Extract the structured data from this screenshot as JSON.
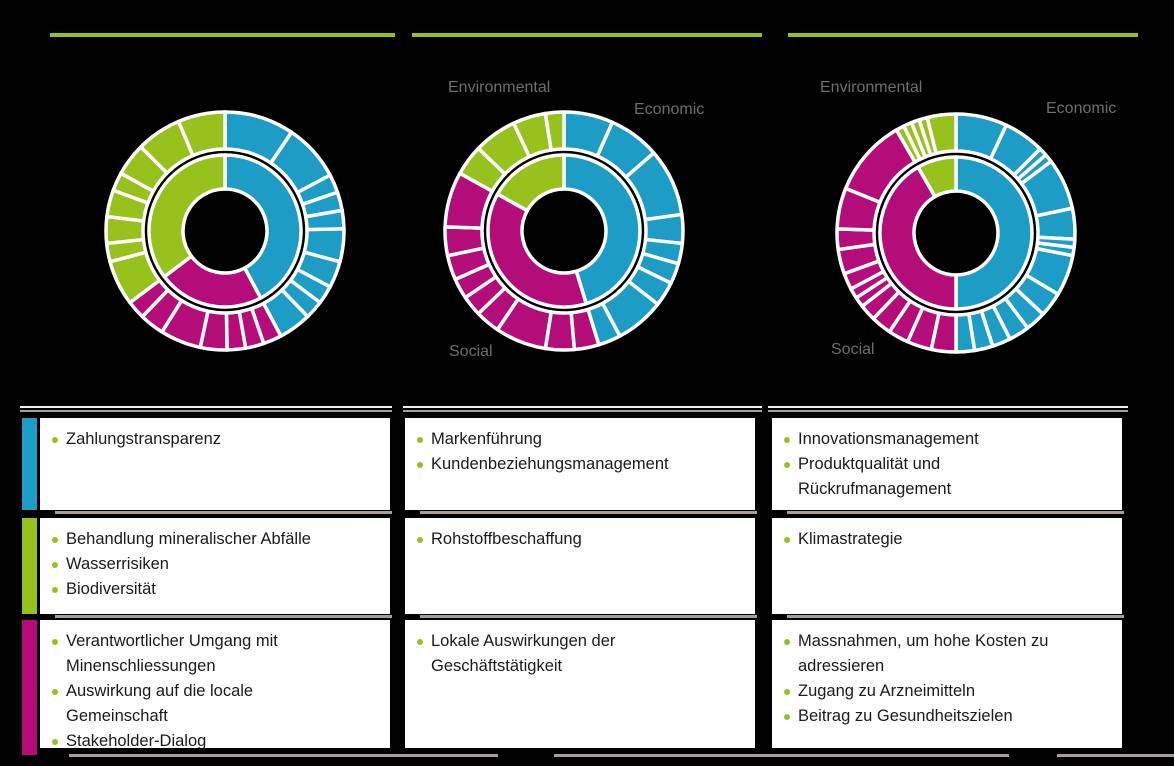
{
  "page": {
    "background": "#000000"
  },
  "colors": {
    "economic": "#1D9DC6",
    "social": "#B40C78",
    "environmental": "#97C11C",
    "accent_line": "#97C11C",
    "pillar_label_gray": "#6E6E6E",
    "card_background": "#FFFFFF",
    "card_text": "#1A1A1A",
    "bullet_green": "#96C11E",
    "separator_white": "#F2EFEB",
    "separator_tan": "#A89F96"
  },
  "chart_data": [
    {
      "type": "sunburst",
      "rings": [
        "inner: pillar shares",
        "outer: criteria weights per pillar"
      ],
      "unit": "degrees",
      "labels": null,
      "pillars": [
        {
          "name": "Economic",
          "color": "#1D9DC6",
          "inner_span_deg": 152,
          "outer_segments_deg": [
            34,
            28,
            9,
            9,
            9,
            16,
            13,
            9,
            9,
            16
          ]
        },
        {
          "name": "Social",
          "color": "#B40C78",
          "inner_span_deg": 81,
          "outer_segments_deg": [
            9,
            9,
            9,
            13,
            20,
            12,
            9
          ]
        },
        {
          "name": "Environmental",
          "color": "#97C11C",
          "inner_span_deg": 127,
          "outer_segments_deg": [
            22,
            9,
            13,
            13,
            9,
            16,
            22,
            23
          ]
        }
      ]
    },
    {
      "type": "sunburst",
      "rings": [
        "inner: pillar shares",
        "outer: criteria weights per pillar"
      ],
      "unit": "degrees",
      "labels": {
        "environmental": "Environmental",
        "economic": "Economic",
        "social": "Social"
      },
      "pillars": [
        {
          "name": "Economic",
          "color": "#1D9DC6",
          "inner_span_deg": 163,
          "outer_segments_deg": [
            24,
            25,
            33,
            14,
            10,
            10,
            12,
            24,
            11
          ]
        },
        {
          "name": "Social",
          "color": "#B40C78",
          "inner_span_deg": 136,
          "outer_segments_deg": [
            12,
            14,
            25,
            12,
            10,
            10,
            12,
            14,
            27
          ]
        },
        {
          "name": "Environmental",
          "color": "#97C11C",
          "inner_span_deg": 61,
          "outer_segments_deg": [
            15,
            21,
            16,
            9
          ]
        }
      ]
    },
    {
      "type": "sunburst",
      "rings": [
        "inner: pillar shares",
        "outer: criteria weights per pillar"
      ],
      "unit": "degrees",
      "labels": {
        "environmental": "Environmental",
        "economic": "Economic",
        "social": "Social"
      },
      "pillars": [
        {
          "name": "Economic",
          "color": "#1D9DC6",
          "inner_span_deg": 180,
          "outer_segments_deg": [
            25,
            20,
            4,
            4,
            25,
            15,
            4,
            4,
            20,
            12,
            10,
            10,
            9,
            9,
            9
          ]
        },
        {
          "name": "Social",
          "color": "#B40C78",
          "inner_span_deg": 150,
          "outer_segments_deg": [
            12,
            12,
            10,
            10,
            8,
            5,
            5,
            8,
            12,
            10,
            20,
            38
          ]
        },
        {
          "name": "Environmental",
          "color": "#97C11C",
          "inner_span_deg": 30,
          "outer_segments_deg": [
            4,
            4,
            4,
            4,
            14
          ]
        }
      ]
    }
  ],
  "columns": [
    {
      "row_accents": [
        "economic",
        "environmental",
        "social"
      ],
      "cards": [
        {
          "accent": "economic",
          "items": [
            "Zahlungstransparenz"
          ]
        },
        {
          "accent": "environmental",
          "items": [
            "Behandlung mineralischer Abfälle",
            "Wasserrisiken",
            "Biodiversität"
          ]
        },
        {
          "accent": "social",
          "items": [
            "Verantwortlicher Umgang mit Minenschliessungen",
            "Auswirkung auf die locale Gemeinschaft",
            "Stakeholder-Dialog"
          ]
        }
      ]
    },
    {
      "cards": [
        {
          "accent": "economic",
          "items": [
            "Markenführung",
            "Kundenbeziehungsmanagement"
          ]
        },
        {
          "accent": "environmental",
          "items": [
            "Rohstoffbeschaffung"
          ]
        },
        {
          "accent": "social",
          "items": [
            "Lokale Auswirkungen der Geschäftstätigkeit"
          ]
        }
      ]
    },
    {
      "cards": [
        {
          "accent": "economic",
          "items": [
            "Innovationsmanagement",
            "Produktqualität und Rückrufmanagement"
          ]
        },
        {
          "accent": "environmental",
          "items": [
            "Klimastrategie"
          ]
        },
        {
          "accent": "social",
          "items": [
            "Massnahmen, um hohe Kosten zu adressieren",
            "Zugang zu Arzneimitteln",
            "Beitrag zu Gesundheitszielen"
          ]
        }
      ]
    }
  ]
}
